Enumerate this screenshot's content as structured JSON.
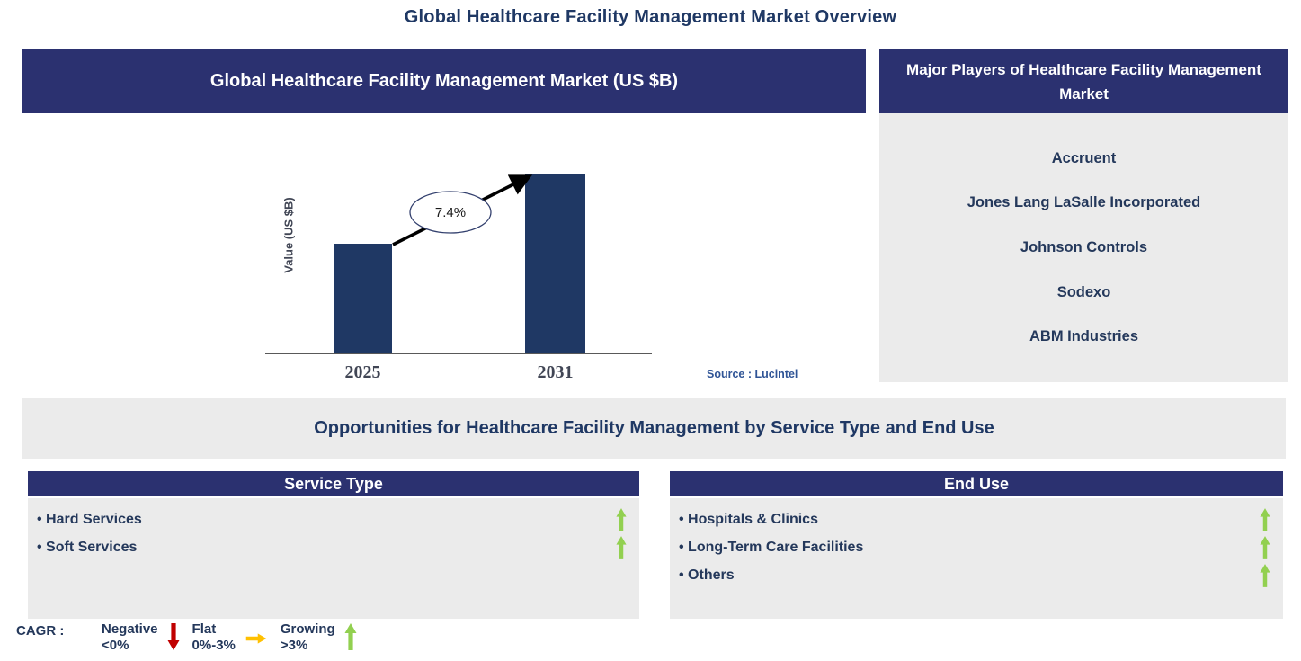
{
  "page": {
    "title": "Global Healthcare Facility Management Market Overview"
  },
  "colors": {
    "navy": "#2B3170",
    "bar": "#1F3864",
    "gray": "#EBEBEB",
    "title": "#1F3864",
    "item": "#24385B",
    "source": "#2F5496",
    "tick": "#414655",
    "axis": "#595959",
    "red": "#C00000",
    "amber": "#FFC000",
    "green": "#92D050"
  },
  "chart_data": {
    "type": "bar",
    "title": "Global Healthcare Facility Management Market (US $B)",
    "categories": [
      "2025",
      "2031"
    ],
    "relative_heights": [
      0.61,
      1.0
    ],
    "values_note": "no numeric axis shown; bars are relative, growth annotated as CAGR",
    "cagr_label": "7.4%",
    "xlabel": "",
    "ylabel": "Value (US $B)",
    "grid": false,
    "legend": false,
    "source": "Source : Lucintel"
  },
  "market_chart": {
    "header": "Global Healthcare Facility Management Market (US $B)",
    "ylabel": "Value (US $B)",
    "cagr_label": "7.4%",
    "tick_2025": "2025",
    "tick_2031": "2031",
    "source": "Source : Lucintel"
  },
  "major_players": {
    "title": "Major Players of Healthcare Facility Management Market",
    "companies": [
      "Accruent",
      "Jones Lang LaSalle Incorporated",
      "Johnson Controls",
      "Sodexo",
      "ABM Industries"
    ]
  },
  "opportunities": {
    "title": "Opportunities for Healthcare Facility Management by Service Type and End Use"
  },
  "service_type": {
    "title": "Service Type",
    "items": [
      {
        "label": "Hard Services",
        "trend": "up"
      },
      {
        "label": "Soft Services",
        "trend": "up"
      }
    ]
  },
  "end_use": {
    "title": "End Use",
    "items": [
      {
        "label": "Hospitals & Clinics",
        "trend": "up"
      },
      {
        "label": "Long-Term Care Facilities",
        "trend": "up"
      },
      {
        "label": "Others",
        "trend": "up"
      }
    ]
  },
  "cagr_legend": {
    "prefix": "CAGR :",
    "entries": [
      {
        "label": "Negative",
        "range": "<0%",
        "direction": "down",
        "color": "#C00000"
      },
      {
        "label": "Flat",
        "range": "0%-3%",
        "direction": "right",
        "color": "#FFC000"
      },
      {
        "label": "Growing",
        "range": ">3%",
        "direction": "up",
        "color": "#92D050"
      }
    ]
  }
}
